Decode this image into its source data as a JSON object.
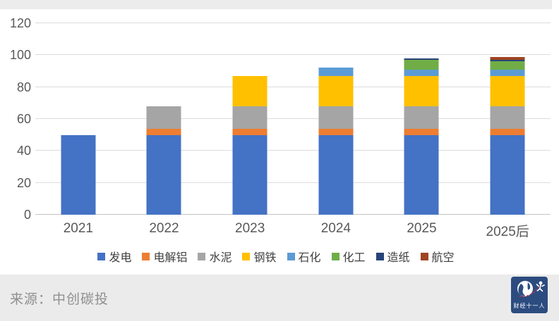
{
  "chart_data": {
    "type": "bar",
    "stacked": true,
    "title": "",
    "xlabel": "",
    "ylabel": "",
    "ylim": [
      0,
      120
    ],
    "ytick_step": 20,
    "grid": true,
    "legend_position": "bottom",
    "categories": [
      "2021",
      "2022",
      "2023",
      "2024",
      "2025",
      "2025后"
    ],
    "series": [
      {
        "name": "发电",
        "color": "#4472C4",
        "values": [
          50,
          50,
          50,
          50,
          50,
          50
        ]
      },
      {
        "name": "电解铝",
        "color": "#ED7D31",
        "values": [
          0,
          4,
          4,
          4,
          4,
          4
        ]
      },
      {
        "name": "水泥",
        "color": "#A5A5A5",
        "values": [
          0,
          14,
          14,
          14,
          14,
          14
        ]
      },
      {
        "name": "钢铁",
        "color": "#FFC000",
        "values": [
          0,
          0,
          19,
          19,
          19,
          19
        ]
      },
      {
        "name": "石化",
        "color": "#5B9BD5",
        "values": [
          0,
          0,
          0,
          5,
          4,
          4
        ]
      },
      {
        "name": "化工",
        "color": "#70AD47",
        "values": [
          0,
          0,
          0,
          0,
          6,
          5
        ]
      },
      {
        "name": "造纸",
        "color": "#264478",
        "values": [
          0,
          0,
          0,
          0,
          1,
          1
        ]
      },
      {
        "name": "航空",
        "color": "#9E4522",
        "values": [
          0,
          0,
          0,
          0,
          0,
          2
        ]
      }
    ],
    "totals": [
      50,
      68,
      87,
      92,
      98,
      99
    ]
  },
  "footer": {
    "source_label": "来源：中创碳投",
    "logo_text": "财经十一人"
  },
  "style_colors": {
    "gridline": "#dcdcdc",
    "zero_line": "#c6c6c6",
    "tick_text": "#595959",
    "legend_text": "#404040",
    "band_background": "#ececec",
    "logo_background": "#2c4c80"
  }
}
